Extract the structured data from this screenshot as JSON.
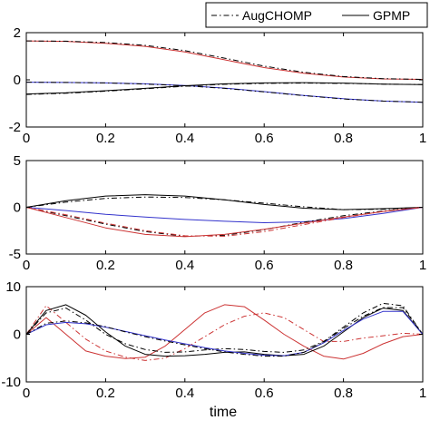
{
  "legend": {
    "items": [
      {
        "label": "AugCHOMP",
        "style": "dash-dot"
      },
      {
        "label": "GPMP",
        "style": "solid"
      }
    ]
  },
  "colors": {
    "red": "#cc3333",
    "blue": "#3333cc",
    "black": "#000000",
    "frame": "#000000",
    "background": "#ffffff"
  },
  "chart_data": [
    {
      "type": "line",
      "xlabel": "",
      "ylabel": "",
      "xlim": [
        0,
        1
      ],
      "ylim": [
        -2,
        2
      ],
      "xticks": [
        "0",
        "0.2",
        "0.4",
        "0.6",
        "0.8",
        "1"
      ],
      "yticks": [
        "-2",
        "0",
        "2"
      ],
      "grid": false,
      "series": [
        {
          "color": "red",
          "style": "solid",
          "x": [
            0,
            0.1,
            0.2,
            0.3,
            0.4,
            0.5,
            0.6,
            0.7,
            0.8,
            0.9,
            1.0
          ],
          "y": [
            1.65,
            1.63,
            1.55,
            1.42,
            1.18,
            0.85,
            0.52,
            0.28,
            0.12,
            0.04,
            0.02
          ]
        },
        {
          "color": "black",
          "style": "dash-dot",
          "x": [
            0,
            0.1,
            0.2,
            0.3,
            0.4,
            0.5,
            0.6,
            0.7,
            0.8,
            0.9,
            1.0
          ],
          "y": [
            1.65,
            1.64,
            1.58,
            1.46,
            1.24,
            0.92,
            0.58,
            0.32,
            0.14,
            0.05,
            0.02
          ]
        },
        {
          "color": "blue",
          "style": "solid",
          "x": [
            0,
            0.1,
            0.2,
            0.3,
            0.4,
            0.5,
            0.6,
            0.7,
            0.8,
            0.9,
            1.0
          ],
          "y": [
            -0.1,
            -0.11,
            -0.13,
            -0.17,
            -0.24,
            -0.35,
            -0.5,
            -0.66,
            -0.8,
            -0.9,
            -0.95
          ]
        },
        {
          "color": "black",
          "style": "dash-dot",
          "x": [
            0,
            0.1,
            0.2,
            0.3,
            0.4,
            0.5,
            0.6,
            0.7,
            0.8,
            0.9,
            1.0
          ],
          "y": [
            -0.1,
            -0.11,
            -0.13,
            -0.18,
            -0.25,
            -0.36,
            -0.51,
            -0.67,
            -0.81,
            -0.9,
            -0.95
          ]
        },
        {
          "color": "black",
          "style": "solid",
          "x": [
            0,
            0.1,
            0.2,
            0.3,
            0.4,
            0.5,
            0.6,
            0.7,
            0.8,
            0.9,
            1.0
          ],
          "y": [
            -0.6,
            -0.55,
            -0.46,
            -0.36,
            -0.25,
            -0.17,
            -0.13,
            -0.12,
            -0.14,
            -0.18,
            -0.2
          ]
        },
        {
          "color": "black",
          "style": "dash-dot",
          "x": [
            0,
            0.1,
            0.2,
            0.3,
            0.4,
            0.5,
            0.6,
            0.7,
            0.8,
            0.9,
            1.0
          ],
          "y": [
            -0.62,
            -0.57,
            -0.48,
            -0.38,
            -0.27,
            -0.19,
            -0.15,
            -0.14,
            -0.15,
            -0.18,
            -0.2
          ]
        }
      ]
    },
    {
      "type": "line",
      "xlabel": "",
      "ylabel": "",
      "xlim": [
        0,
        1
      ],
      "ylim": [
        -5,
        5
      ],
      "xticks": [
        "0",
        "0.2",
        "0.4",
        "0.6",
        "0.8",
        "1"
      ],
      "yticks": [
        "-5",
        "0",
        "5"
      ],
      "grid": false,
      "series": [
        {
          "color": "black",
          "style": "solid",
          "x": [
            0,
            0.1,
            0.2,
            0.3,
            0.4,
            0.5,
            0.6,
            0.7,
            0.8,
            0.9,
            1.0
          ],
          "y": [
            0,
            0.7,
            1.2,
            1.35,
            1.2,
            0.8,
            0.3,
            -0.1,
            -0.25,
            -0.15,
            0
          ]
        },
        {
          "color": "black",
          "style": "dash-dot",
          "x": [
            0,
            0.1,
            0.2,
            0.3,
            0.4,
            0.5,
            0.6,
            0.7,
            0.8,
            0.9,
            1.0
          ],
          "y": [
            0,
            0.55,
            0.95,
            1.1,
            1.05,
            0.8,
            0.45,
            0.05,
            -0.25,
            -0.2,
            0
          ]
        },
        {
          "color": "blue",
          "style": "solid",
          "x": [
            0,
            0.1,
            0.2,
            0.3,
            0.4,
            0.5,
            0.6,
            0.7,
            0.8,
            0.9,
            1.0
          ],
          "y": [
            0,
            -0.35,
            -0.75,
            -1.05,
            -1.3,
            -1.5,
            -1.65,
            -1.55,
            -1.2,
            -0.65,
            0
          ]
        },
        {
          "color": "black",
          "style": "dash-dot",
          "x": [
            0,
            0.1,
            0.2,
            0.3,
            0.4,
            0.5,
            0.6,
            0.7,
            0.8,
            0.9,
            1.0
          ],
          "y": [
            0,
            -0.9,
            -1.8,
            -2.6,
            -3.1,
            -3.0,
            -2.4,
            -1.6,
            -0.9,
            -0.4,
            0
          ]
        },
        {
          "color": "red",
          "style": "solid",
          "x": [
            0,
            0.1,
            0.2,
            0.3,
            0.4,
            0.5,
            0.6,
            0.7,
            0.8,
            0.9,
            1.0
          ],
          "y": [
            0,
            -1.1,
            -2.2,
            -2.9,
            -3.15,
            -2.9,
            -2.35,
            -1.7,
            -1.05,
            -0.45,
            0
          ]
        },
        {
          "color": "red",
          "style": "dash-dot",
          "x": [
            0,
            0.1,
            0.2,
            0.3,
            0.4,
            0.5,
            0.6,
            0.7,
            0.8,
            0.9,
            1.0
          ],
          "y": [
            0,
            -0.8,
            -1.7,
            -2.5,
            -3.05,
            -3.1,
            -2.6,
            -1.85,
            -1.1,
            -0.45,
            0
          ]
        }
      ]
    },
    {
      "type": "line",
      "xlabel": "time",
      "ylabel": "",
      "xlim": [
        0,
        1
      ],
      "ylim": [
        -10,
        10
      ],
      "xticks": [
        "0",
        "0.2",
        "0.4",
        "0.6",
        "0.8",
        "1"
      ],
      "yticks": [
        "-10",
        "0",
        "10"
      ],
      "grid": false,
      "series": [
        {
          "color": "red",
          "style": "solid",
          "x": [
            0,
            0.05,
            0.1,
            0.15,
            0.2,
            0.25,
            0.3,
            0.35,
            0.4,
            0.45,
            0.5,
            0.55,
            0.6,
            0.65,
            0.7,
            0.75,
            0.8,
            0.85,
            0.9,
            0.95,
            1.0
          ],
          "y": [
            0,
            3.5,
            0,
            -3.5,
            -4.6,
            -5.1,
            -4.8,
            -2.5,
            1.0,
            4.5,
            6.2,
            5.8,
            3.0,
            0,
            -2.5,
            -4.6,
            -5.2,
            -4.0,
            -2.0,
            -0.5,
            0
          ]
        },
        {
          "color": "red",
          "style": "dash-dot",
          "x": [
            0,
            0.05,
            0.1,
            0.15,
            0.2,
            0.25,
            0.3,
            0.35,
            0.4,
            0.45,
            0.5,
            0.55,
            0.6,
            0.65,
            0.7,
            0.75,
            0.8,
            0.85,
            0.9,
            0.95,
            1.0
          ],
          "y": [
            0,
            6.0,
            2.5,
            -1.0,
            -3.5,
            -4.8,
            -5.5,
            -5.0,
            -3.0,
            -0.5,
            2.0,
            3.8,
            4.5,
            3.5,
            1.0,
            -1.5,
            -1.5,
            -0.8,
            -0.3,
            0.2,
            0
          ]
        },
        {
          "color": "black",
          "style": "solid",
          "x": [
            0,
            0.05,
            0.1,
            0.15,
            0.2,
            0.25,
            0.3,
            0.35,
            0.4,
            0.45,
            0.5,
            0.55,
            0.6,
            0.65,
            0.7,
            0.75,
            0.8,
            0.85,
            0.9,
            0.95,
            1.0
          ],
          "y": [
            0,
            5.0,
            6.2,
            4.0,
            0.5,
            -2.5,
            -4.2,
            -4.6,
            -4.5,
            -4.2,
            -3.8,
            -3.7,
            -4.2,
            -4.5,
            -4.2,
            -2.5,
            0.5,
            3.5,
            5.5,
            5.0,
            0
          ]
        },
        {
          "color": "black",
          "style": "dash-dot",
          "x": [
            0,
            0.05,
            0.1,
            0.15,
            0.2,
            0.25,
            0.3,
            0.35,
            0.4,
            0.45,
            0.5,
            0.55,
            0.6,
            0.65,
            0.7,
            0.75,
            0.8,
            0.85,
            0.9,
            0.95,
            1.0
          ],
          "y": [
            0,
            4.5,
            5.5,
            3.0,
            0,
            -2.0,
            -3.2,
            -3.8,
            -3.7,
            -3.3,
            -3.0,
            -3.2,
            -3.6,
            -3.8,
            -3.3,
            -1.5,
            1.5,
            4.5,
            6.5,
            6.0,
            0
          ]
        },
        {
          "color": "blue",
          "style": "solid",
          "x": [
            0,
            0.05,
            0.1,
            0.15,
            0.2,
            0.25,
            0.3,
            0.35,
            0.4,
            0.45,
            0.5,
            0.55,
            0.6,
            0.65,
            0.7,
            0.75,
            0.8,
            0.85,
            0.9,
            0.95,
            1.0
          ],
          "y": [
            0,
            2.0,
            2.5,
            2.2,
            1.5,
            0.6,
            -0.3,
            -1.2,
            -2.0,
            -2.8,
            -3.5,
            -4.0,
            -4.4,
            -4.5,
            -3.8,
            -1.8,
            0.8,
            3.2,
            4.8,
            4.8,
            0
          ]
        },
        {
          "color": "black",
          "style": "dash-dot",
          "x": [
            0,
            0.05,
            0.1,
            0.15,
            0.2,
            0.25,
            0.3,
            0.35,
            0.4,
            0.45,
            0.5,
            0.55,
            0.6,
            0.65,
            0.7,
            0.75,
            0.8,
            0.85,
            0.9,
            0.95,
            1.0
          ],
          "y": [
            0,
            2.3,
            2.8,
            2.4,
            1.6,
            0.5,
            -0.5,
            -1.4,
            -2.2,
            -3.0,
            -3.7,
            -4.2,
            -4.6,
            -4.6,
            -3.8,
            -1.6,
            1.2,
            3.8,
            5.6,
            5.6,
            0
          ]
        }
      ]
    }
  ]
}
